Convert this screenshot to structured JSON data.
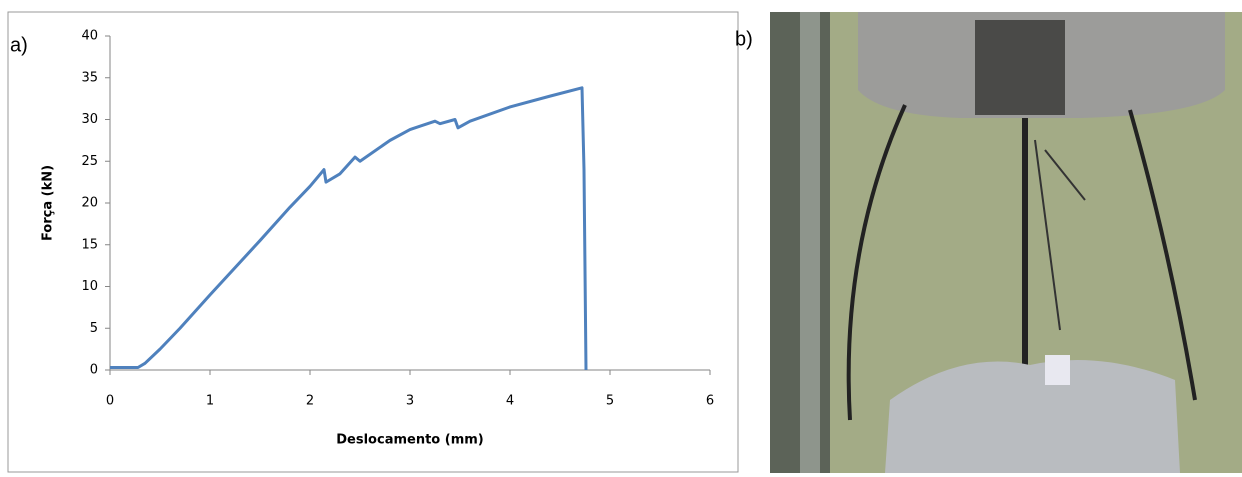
{
  "panel_labels": [
    "a)",
    "b)"
  ],
  "chart_data": {
    "type": "line",
    "xlabel": "Deslocamento (mm)",
    "ylabel": "Força (kN)",
    "x": [
      0,
      0.28,
      0.35,
      0.5,
      0.7,
      1,
      1.5,
      1.8,
      2.0,
      2.14,
      2.16,
      2.3,
      2.45,
      2.5,
      2.8,
      3.0,
      3.25,
      3.3,
      3.45,
      3.48,
      3.6,
      4,
      4.4,
      4.72,
      4.74,
      4.76
    ],
    "values": [
      0.3,
      0.3,
      0.8,
      2.5,
      5,
      9,
      15.5,
      19.5,
      22,
      24,
      22.5,
      23.5,
      25.5,
      25,
      27.5,
      28.8,
      29.8,
      29.5,
      30,
      29,
      29.8,
      31.5,
      32.8,
      33.8,
      24,
      0
    ],
    "color": "#4f81bd",
    "xlim": [
      0,
      6
    ],
    "xticks": [
      0,
      1,
      2,
      3,
      4,
      5,
      6
    ],
    "ylim": [
      0,
      40
    ],
    "yticks": [
      0,
      5,
      10,
      15,
      20,
      25,
      30,
      35,
      40
    ]
  }
}
